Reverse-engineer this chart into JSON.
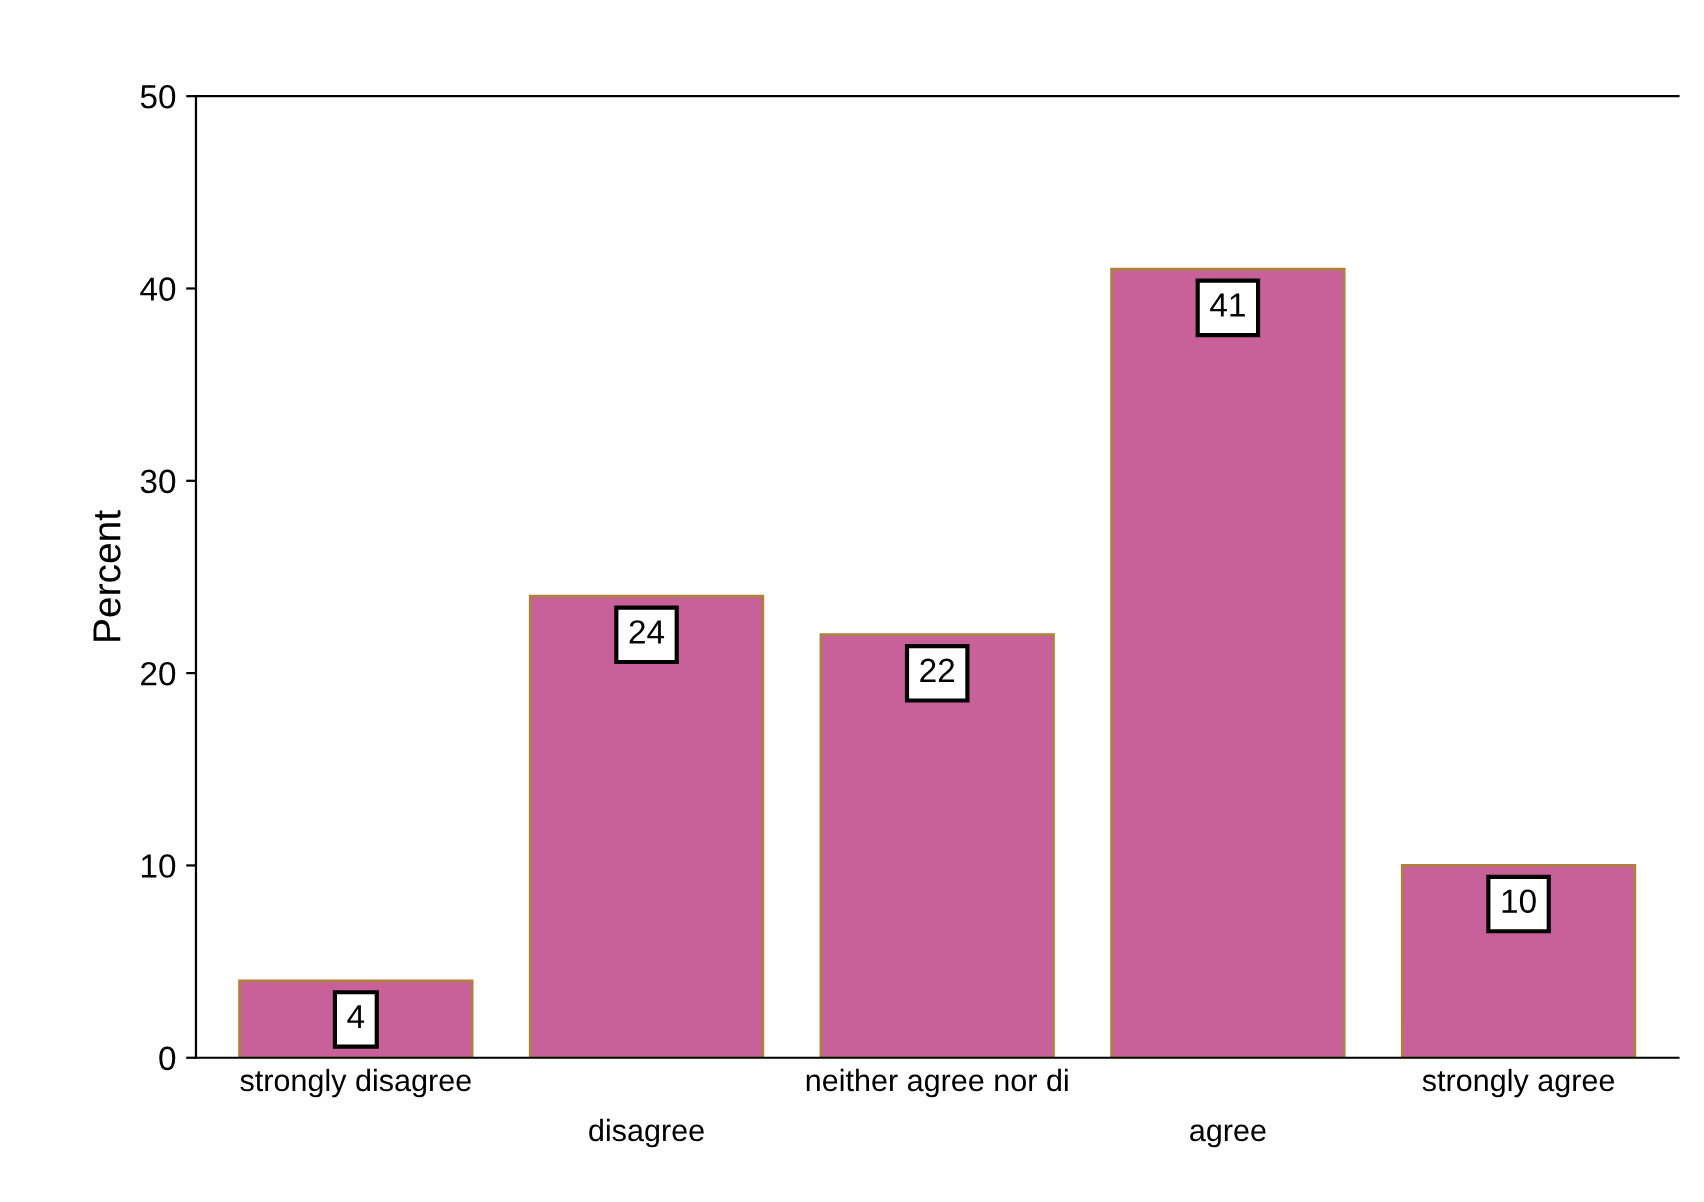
{
  "chart_data": {
    "type": "bar",
    "ylabel": "Percent",
    "categories": [
      "strongly disagree",
      "disagree",
      "neither agree nor di",
      "agree",
      "strongly agree"
    ],
    "values": [
      4,
      24,
      22,
      41,
      10
    ],
    "color": "#c8609a",
    "ylim": [
      0,
      50
    ],
    "yticks": [
      0,
      10,
      20,
      30,
      40,
      50
    ],
    "grid": false,
    "data_labels": true
  }
}
